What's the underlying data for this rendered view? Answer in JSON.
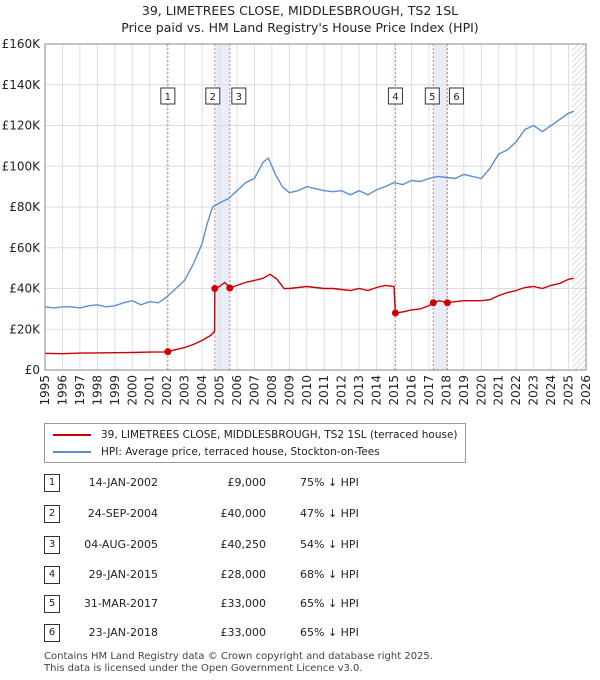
{
  "title_line1": "39, LIMETREES CLOSE, MIDDLESBROUGH, TS2 1SL",
  "title_line2": "Price paid vs. HM Land Registry's House Price Index (HPI)",
  "colors": {
    "property": "#cc0000",
    "hpi": "#5b8fd4",
    "band": "#e8eef8",
    "vline": "#e08080"
  },
  "legend": {
    "property": "39, LIMETREES CLOSE, MIDDLESBROUGH, TS2 1SL (terraced house)",
    "hpi": "HPI: Average price, terraced house, Stockton-on-Tees"
  },
  "transactions": [
    {
      "num": "1",
      "date": "14-JAN-2002",
      "price": "£9,000",
      "hpi": "75% ↓ HPI"
    },
    {
      "num": "2",
      "date": "24-SEP-2004",
      "price": "£40,000",
      "hpi": "47% ↓ HPI"
    },
    {
      "num": "3",
      "date": "04-AUG-2005",
      "price": "£40,250",
      "hpi": "54% ↓ HPI"
    },
    {
      "num": "4",
      "date": "29-JAN-2015",
      "price": "£28,000",
      "hpi": "68% ↓ HPI"
    },
    {
      "num": "5",
      "date": "31-MAR-2017",
      "price": "£33,000",
      "hpi": "65% ↓ HPI"
    },
    {
      "num": "6",
      "date": "23-JAN-2018",
      "price": "£33,000",
      "hpi": "65% ↓ HPI"
    }
  ],
  "footer_line1": "Contains HM Land Registry data © Crown copyright and database right 2025.",
  "footer_line2": "This data is licensed under the Open Government Licence v3.0.",
  "chart_data": {
    "type": "line",
    "xlim": [
      1995,
      2026
    ],
    "ylim": [
      0,
      160000
    ],
    "yticks": [
      0,
      20000,
      40000,
      60000,
      80000,
      100000,
      120000,
      140000,
      160000
    ],
    "ytick_labels": [
      "£0",
      "£20K",
      "£40K",
      "£60K",
      "£80K",
      "£100K",
      "£120K",
      "£140K",
      "£160K"
    ],
    "xticks": [
      1995,
      1996,
      1997,
      1998,
      1999,
      2000,
      2001,
      2002,
      2003,
      2004,
      2005,
      2006,
      2007,
      2008,
      2009,
      2010,
      2011,
      2012,
      2013,
      2014,
      2015,
      2016,
      2017,
      2018,
      2019,
      2020,
      2021,
      2022,
      2023,
      2024,
      2025,
      2026
    ],
    "grid": true,
    "forecast_from": 2025.2,
    "sales": [
      {
        "label": "1",
        "x": 2002.04,
        "y": 9000
      },
      {
        "label": "2",
        "x": 2004.73,
        "y": 40000
      },
      {
        "label": "3",
        "x": 2005.59,
        "y": 40250
      },
      {
        "label": "4",
        "x": 2015.08,
        "y": 28000
      },
      {
        "label": "5",
        "x": 2017.25,
        "y": 33000
      },
      {
        "label": "6",
        "x": 2018.06,
        "y": 33000
      }
    ],
    "series": [
      {
        "name": "HPI: Average price, terraced house, Stockton-on-Tees",
        "x": [
          1995.0,
          1995.5,
          1996.0,
          1996.5,
          1997.0,
          1997.5,
          1998.0,
          1998.5,
          1999.0,
          1999.5,
          2000.0,
          2000.5,
          2001.0,
          2001.5,
          2002.0,
          2002.5,
          2003.0,
          2003.5,
          2004.0,
          2004.3,
          2004.6,
          2005.0,
          2005.5,
          2006.0,
          2006.5,
          2007.0,
          2007.5,
          2007.8,
          2008.2,
          2008.6,
          2009.0,
          2009.5,
          2010.0,
          2010.5,
          2011.0,
          2011.5,
          2012.0,
          2012.5,
          2013.0,
          2013.5,
          2014.0,
          2014.5,
          2015.0,
          2015.5,
          2016.0,
          2016.5,
          2017.0,
          2017.5,
          2018.0,
          2018.5,
          2019.0,
          2019.5,
          2020.0,
          2020.5,
          2021.0,
          2021.5,
          2022.0,
          2022.5,
          2023.0,
          2023.5,
          2024.0,
          2024.5,
          2025.0,
          2025.3
        ],
        "y": [
          31000,
          30500,
          31000,
          31000,
          30500,
          31500,
          32000,
          31000,
          31500,
          33000,
          34000,
          32000,
          33500,
          33000,
          36000,
          40000,
          44000,
          52000,
          62000,
          72000,
          80000,
          82000,
          84000,
          88000,
          92000,
          94000,
          102000,
          104000,
          96000,
          90000,
          87000,
          88000,
          90000,
          89000,
          88000,
          87500,
          88000,
          86000,
          88000,
          86000,
          88500,
          90000,
          92000,
          91000,
          93000,
          92500,
          94000,
          95000,
          94500,
          94000,
          96000,
          95000,
          94000,
          99000,
          106000,
          108000,
          112000,
          118000,
          120000,
          117000,
          120000,
          123000,
          126000,
          127000
        ]
      },
      {
        "name": "39, LIMETREES CLOSE, MIDDLESBROUGH, TS2 1SL (terraced house)",
        "x": [
          1995.0,
          1996.0,
          1997.0,
          1998.0,
          1999.0,
          2000.0,
          2001.0,
          2001.9,
          2002.04,
          2002.5,
          2003.0,
          2003.5,
          2004.0,
          2004.5,
          2004.72,
          2004.73,
          2005.0,
          2005.3,
          2005.59,
          2006.0,
          2006.5,
          2007.0,
          2007.5,
          2007.9,
          2008.3,
          2008.7,
          2009.0,
          2009.5,
          2010.0,
          2010.5,
          2011.0,
          2011.5,
          2012.0,
          2012.5,
          2013.0,
          2013.5,
          2014.0,
          2014.5,
          2015.0,
          2015.08,
          2015.5,
          2016.0,
          2016.5,
          2017.0,
          2017.25,
          2017.6,
          2018.06,
          2018.5,
          2019.0,
          2019.5,
          2020.0,
          2020.5,
          2021.0,
          2021.5,
          2022.0,
          2022.5,
          2023.0,
          2023.5,
          2024.0,
          2024.5,
          2025.0,
          2025.3
        ],
        "y": [
          8200,
          8000,
          8300,
          8400,
          8500,
          8600,
          8800,
          8900,
          9000,
          10000,
          11000,
          12500,
          14500,
          17000,
          19000,
          40000,
          41000,
          43000,
          40250,
          41500,
          43000,
          44000,
          45000,
          47000,
          44500,
          40000,
          40000,
          40500,
          41000,
          40500,
          40000,
          40000,
          39500,
          39000,
          40000,
          39000,
          40500,
          41500,
          41000,
          28000,
          28500,
          29500,
          30000,
          31500,
          33000,
          34000,
          33000,
          33500,
          34000,
          34000,
          34000,
          34500,
          36500,
          38000,
          39000,
          40500,
          41000,
          40000,
          41500,
          42500,
          44500,
          45000
        ]
      }
    ]
  }
}
